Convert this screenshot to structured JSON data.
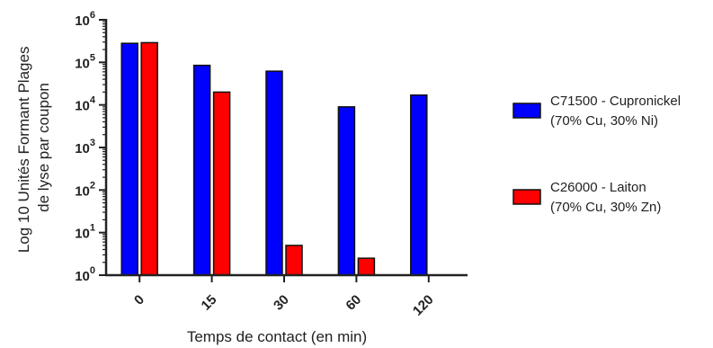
{
  "chart_data": {
    "type": "bar",
    "xlabel": "Temps de contact (en min)",
    "ylabel": [
      "Log 10 Unités Formant Plages",
      "de lyse par coupon"
    ],
    "yscale": "log",
    "ylim": [
      1,
      1000000
    ],
    "yticks": [
      {
        "value": 1,
        "base": "10",
        "exp": "0"
      },
      {
        "value": 10,
        "base": "10",
        "exp": "1"
      },
      {
        "value": 100,
        "base": "10",
        "exp": "2"
      },
      {
        "value": 1000,
        "base": "10",
        "exp": "3"
      },
      {
        "value": 10000,
        "base": "10",
        "exp": "4"
      },
      {
        "value": 100000,
        "base": "10",
        "exp": "5"
      },
      {
        "value": 1000000,
        "base": "10",
        "exp": "6"
      }
    ],
    "categories": [
      "0",
      "15",
      "30",
      "60",
      "120"
    ],
    "legend_position": "right",
    "series": [
      {
        "name_lines": [
          "C71500 - Cupronickel",
          "(70% Cu, 30% Ni)"
        ],
        "color": "#0000ff",
        "values": [
          280000,
          85000,
          62000,
          9000,
          17000
        ]
      },
      {
        "name_lines": [
          "C26000 - Laiton",
          "(70% Cu, 30% Zn)"
        ],
        "color": "#ff0000",
        "values": [
          290000,
          20000,
          5,
          2.5,
          null
        ]
      }
    ]
  }
}
